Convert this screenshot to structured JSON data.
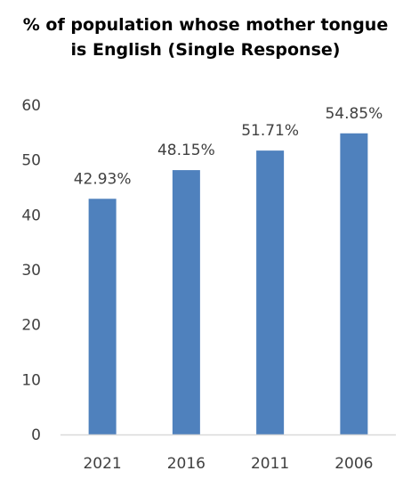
{
  "chart_data": {
    "type": "bar",
    "title_lines": [
      "% of population whose mother tongue",
      "is English (Single Response)"
    ],
    "categories": [
      "2021",
      "2016",
      "2011",
      "2006"
    ],
    "values": [
      42.93,
      48.15,
      51.71,
      54.85
    ],
    "data_labels": [
      "42.93%",
      "48.15%",
      "51.71%",
      "54.85%"
    ],
    "ylim": [
      0,
      60
    ],
    "yticks": [
      0,
      10,
      20,
      30,
      40,
      50,
      60
    ],
    "grid": false,
    "bar_color": "#4F81BD",
    "axis_color": "#D9D9D9",
    "xlabel": "",
    "ylabel": ""
  }
}
